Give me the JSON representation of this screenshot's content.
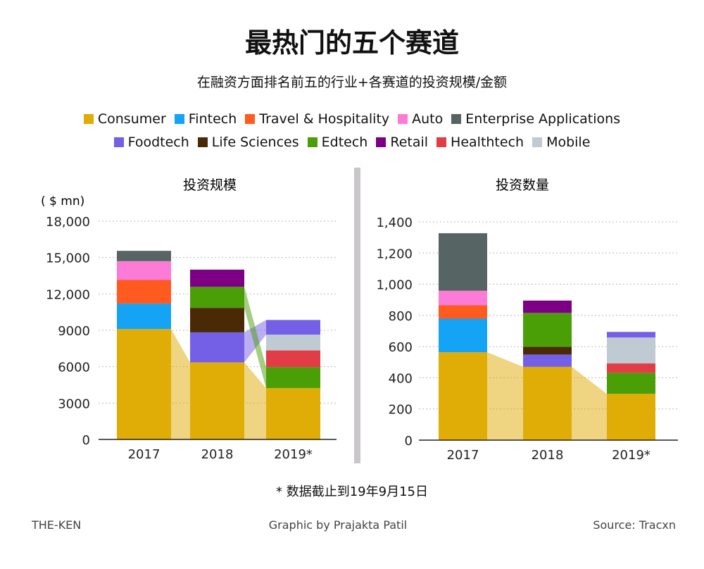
{
  "title": "最热门的五个赛道",
  "subtitle": "在融资方面排名前五的行业+各赛道的投资规模/金额",
  "legend": [
    {
      "name": "Consumer",
      "color": "#e0ac06"
    },
    {
      "name": "Fintech",
      "color": "#14a3f5"
    },
    {
      "name": "Travel & Hospitality",
      "color": "#ff5a1f"
    },
    {
      "name": "Auto",
      "color": "#fb7bd6"
    },
    {
      "name": "Enterprise Applications",
      "color": "#566463"
    },
    {
      "name": "Foodtech",
      "color": "#7360e6"
    },
    {
      "name": "Life Sciences",
      "color": "#4a2a05"
    },
    {
      "name": "Edtech",
      "color": "#4a9e06"
    },
    {
      "name": "Retail",
      "color": "#7d0084"
    },
    {
      "name": "Healthtech",
      "color": "#e23c46"
    },
    {
      "name": "Mobile",
      "color": "#c0cad3"
    }
  ],
  "footnote": "* 数据截止到19年9月15日",
  "footer": {
    "left": "THE-KEN",
    "center": "Graphic by Prajakta Patil",
    "right": "Source: Tracxn"
  },
  "chart_data": [
    {
      "type": "bar",
      "stacked": true,
      "title": "投资规模",
      "ylabel": "( $ mn)",
      "categories": [
        "2017",
        "2018",
        "2019*"
      ],
      "ylim": [
        0,
        18000
      ],
      "yticks": [
        "0",
        "3000",
        "6000",
        "9000",
        "12,000",
        "15,000",
        "18,000"
      ],
      "ytick_values": [
        0,
        3000,
        6000,
        9000,
        12000,
        15000,
        18000
      ],
      "grid": true,
      "connectors": [
        "Consumer",
        "Foodtech",
        "Edtech"
      ],
      "stacks": [
        [
          {
            "series": "Consumer",
            "value": 9100
          },
          {
            "series": "Fintech",
            "value": 2100
          },
          {
            "series": "Travel & Hospitality",
            "value": 1950
          },
          {
            "series": "Auto",
            "value": 1550
          },
          {
            "series": "Enterprise Applications",
            "value": 850
          }
        ],
        [
          {
            "series": "Consumer",
            "value": 6350
          },
          {
            "series": "Foodtech",
            "value": 2480
          },
          {
            "series": "Life Sciences",
            "value": 2020
          },
          {
            "series": "Edtech",
            "value": 1730
          },
          {
            "series": "Retail",
            "value": 1420
          }
        ],
        [
          {
            "series": "Consumer",
            "value": 4230
          },
          {
            "series": "Edtech",
            "value": 1730
          },
          {
            "series": "Healthtech",
            "value": 1380
          },
          {
            "series": "Mobile",
            "value": 1300
          },
          {
            "series": "Foodtech",
            "value": 1210
          }
        ]
      ]
    },
    {
      "type": "bar",
      "stacked": true,
      "title": "投资数量",
      "ylabel": "",
      "categories": [
        "2017",
        "2018",
        "2019*"
      ],
      "ylim": [
        0,
        1400
      ],
      "yticks": [
        "0",
        "200",
        "400",
        "600",
        "800",
        "1,000",
        "1,200",
        "1,400"
      ],
      "ytick_values": [
        0,
        200,
        400,
        600,
        800,
        1000,
        1200,
        1400
      ],
      "grid": true,
      "connectors": [
        "Consumer"
      ],
      "stacks": [
        [
          {
            "series": "Consumer",
            "value": 564
          },
          {
            "series": "Fintech",
            "value": 215
          },
          {
            "series": "Travel & Hospitality",
            "value": 86
          },
          {
            "series": "Auto",
            "value": 93
          },
          {
            "series": "Enterprise Applications",
            "value": 369
          }
        ],
        [
          {
            "series": "Consumer",
            "value": 470
          },
          {
            "series": "Foodtech",
            "value": 79
          },
          {
            "series": "Life Sciences",
            "value": 50
          },
          {
            "series": "Edtech",
            "value": 217
          },
          {
            "series": "Retail",
            "value": 79
          }
        ],
        [
          {
            "series": "Consumer",
            "value": 297
          },
          {
            "series": "Edtech",
            "value": 135
          },
          {
            "series": "Healthtech",
            "value": 60
          },
          {
            "series": "Mobile",
            "value": 166
          },
          {
            "series": "Foodtech",
            "value": 36
          }
        ]
      ]
    }
  ]
}
